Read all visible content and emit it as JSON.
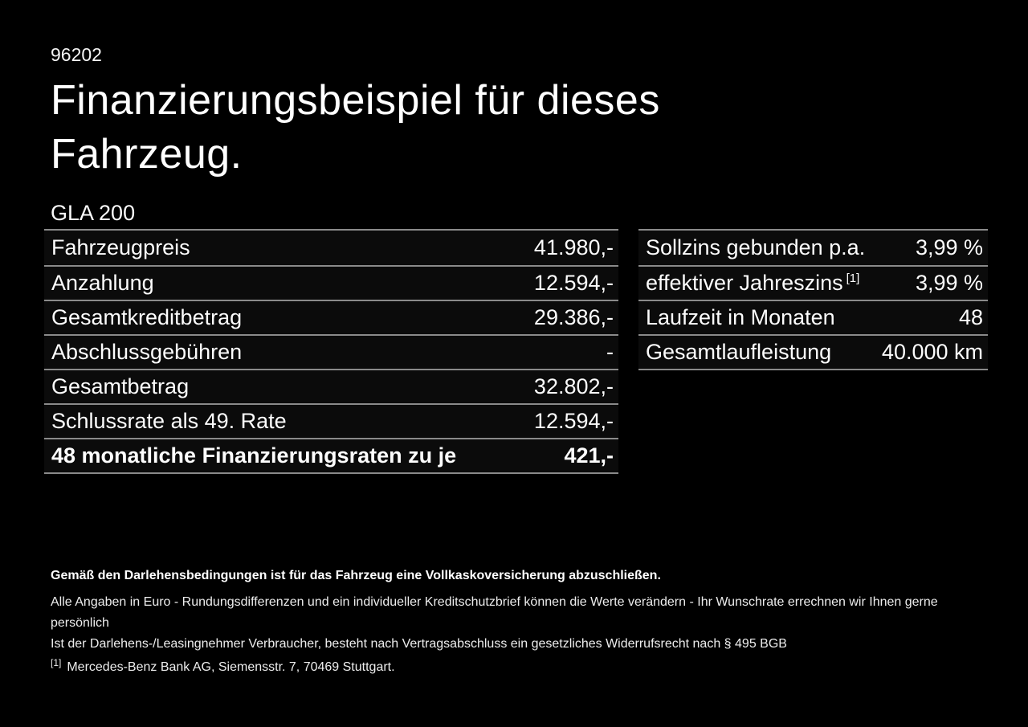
{
  "page": {
    "code": "96202",
    "title_line1": "Finanzierungsbeispiel für dieses",
    "title_line2": "Fahrzeug.",
    "model": "GLA 200"
  },
  "left_table": {
    "rows": [
      {
        "label": "Fahrzeugpreis",
        "value": "41.980,-"
      },
      {
        "label": "Anzahlung",
        "value": "12.594,-"
      },
      {
        "label": "Gesamtkreditbetrag",
        "value": "29.386,-"
      },
      {
        "label": "Abschlussgebühren",
        "value": "-"
      },
      {
        "label": "Gesamtbetrag",
        "value": "32.802,-"
      },
      {
        "label": "Schlussrate als 49. Rate",
        "value": "12.594,-"
      },
      {
        "label": "48 monatliche Finanzierungsraten zu je",
        "value": "421,-"
      }
    ]
  },
  "right_table": {
    "rows": [
      {
        "label": "Sollzins gebunden p.a.",
        "value": "3,99 %"
      },
      {
        "label": "effektiver Jahreszins",
        "sup": "[1]",
        "value": "3,99 %"
      },
      {
        "label": "Laufzeit in Monaten",
        "value": "48"
      },
      {
        "label": "Gesamtlaufleistung",
        "value": "40.000 km"
      }
    ]
  },
  "footer": {
    "insurance_note": "Gemäß den Darlehensbedingungen ist für das Fahrzeug eine Vollkaskoversicherung abzuschließen.",
    "disclaimer_line1": "Alle Angaben in Euro - Rundungsdifferenzen und ein individueller Kreditschutzbrief können die Werte verändern - Ihr Wunschrate errechnen wir Ihnen gerne persönlich",
    "disclaimer_line2": "Ist der Darlehens-/Leasingnehmer Verbraucher, besteht nach Vertragsabschluss ein gesetzliches Widerrufsrecht nach § 495 BGB",
    "footnote_marker": "[1]",
    "footnote_text": "Mercedes-Benz Bank AG, Siemensstr. 7, 70469 Stuttgart."
  },
  "colors": {
    "background": "#000000",
    "text": "#ffffff",
    "divider": "#8a8a8a"
  }
}
